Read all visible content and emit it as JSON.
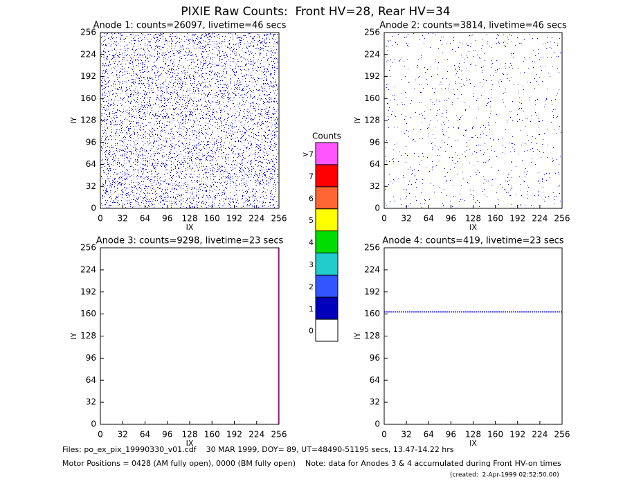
{
  "title": "PIXIE Raw Counts:  Front HV=28, Rear HV=34",
  "chart_data": [
    {
      "type": "heatmap",
      "title": "Anode 1: counts=26097, livetime=46 secs",
      "xlabel": "IX",
      "ylabel": "IY",
      "xlim": [
        0,
        256
      ],
      "ylim": [
        0,
        256
      ],
      "xticks": [
        0,
        32,
        64,
        96,
        128,
        160,
        192,
        224,
        256
      ],
      "yticks": [
        0,
        32,
        64,
        96,
        128,
        160,
        192,
        224,
        256
      ],
      "color": "#0000ee"
    },
    {
      "type": "heatmap",
      "title": "Anode 2: counts=3814, livetime=46 secs",
      "xlabel": "IX",
      "ylabel": "IY",
      "xlim": [
        0,
        256
      ],
      "ylim": [
        0,
        256
      ],
      "xticks": [
        0,
        32,
        64,
        96,
        128,
        160,
        192,
        224,
        256
      ],
      "yticks": [
        0,
        32,
        64,
        96,
        128,
        160,
        192,
        224,
        256
      ],
      "color": "#0000ee"
    },
    {
      "type": "heatmap",
      "title": "Anode 3: counts=9298, livetime=23 secs",
      "xlabel": "IX",
      "ylabel": "IY",
      "xlim": [
        0,
        256
      ],
      "ylim": [
        0,
        256
      ],
      "xticks": [
        0,
        32,
        64,
        96,
        128,
        160,
        192,
        224,
        256
      ],
      "yticks": [
        0,
        32,
        64,
        96,
        128,
        160,
        192,
        224,
        256
      ],
      "color": "#ff55ff",
      "vline": 255
    },
    {
      "type": "heatmap",
      "title": "Anode 4: counts=419, livetime=23 secs",
      "xlabel": "IX",
      "ylabel": "IY",
      "xlim": [
        0,
        256
      ],
      "ylim": [
        0,
        256
      ],
      "xticks": [
        0,
        32,
        64,
        96,
        128,
        160,
        192,
        224,
        256
      ],
      "yticks": [
        0,
        32,
        64,
        96,
        128,
        160,
        192,
        224,
        256
      ],
      "color": "#0000ee",
      "hline": 163
    }
  ],
  "colorbar": {
    "title": "Counts",
    "labels": [
      "0",
      "1",
      "2",
      "3",
      "4",
      "5",
      "6",
      "7",
      ">7"
    ],
    "colors": [
      "#ffffff",
      "#0000bb",
      "#3355ff",
      "#22cccc",
      "#00dd00",
      "#ffff00",
      "#ff6633",
      "#ff0000",
      "#ff55ff"
    ]
  },
  "footer": {
    "line1": "Files: po_ex_pix_19990330_v01.cdf    30 MAR 1999, DOY= 89, UT=48490-51195 secs, 13.47-14.22 hrs",
    "line2": "Motor Positions = 0428 (AM fully open), 0000 (BM fully open)    Note: data for Anodes 3 & 4 accumulated during Front HV-on times",
    "line3": "(created:  2-Apr-1999 02:52:50.00)"
  }
}
